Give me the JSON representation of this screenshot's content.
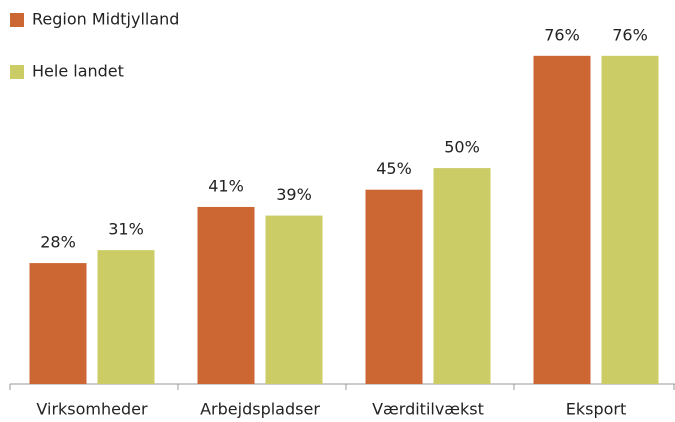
{
  "chart_data": {
    "type": "bar",
    "categories": [
      "Virksomheder",
      "Arbejdspladser",
      "Værditilvækst",
      "Eksport"
    ],
    "series": [
      {
        "name": "Region Midtjylland",
        "color": "#cc6633",
        "values": [
          28,
          41,
          45,
          76
        ],
        "value_labels": [
          "28%",
          "41%",
          "45%",
          "76%"
        ]
      },
      {
        "name": "Hele landet",
        "color": "#cccc66",
        "values": [
          31,
          39,
          50,
          76
        ],
        "value_labels": [
          "31%",
          "39%",
          "50%",
          "76%"
        ]
      }
    ],
    "ylim": [
      0,
      88
    ],
    "legend": "top-left"
  }
}
